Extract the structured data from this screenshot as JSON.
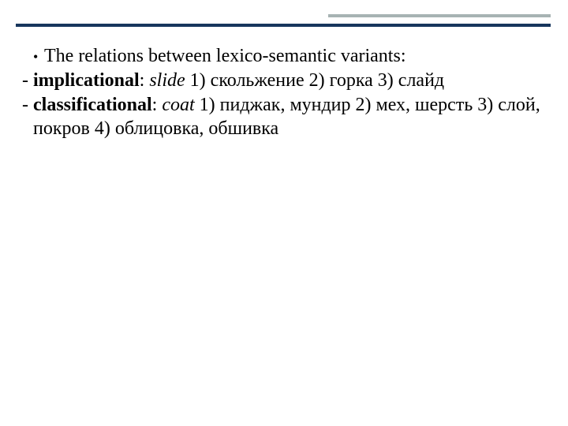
{
  "slide": {
    "accent_color": "#a7b3b3",
    "rule_color": "#17365d",
    "background": "#ffffff",
    "font_family": "Georgia",
    "font_size_pt": 24,
    "bullet": {
      "text": "The relations between lexico-semantic variants:"
    },
    "entries": [
      {
        "dash": "-",
        "label": "implicational",
        "colon": ":",
        "word": "slide",
        "rest": " 1) скольжение 2) горка 3) слайд"
      },
      {
        "dash": "-",
        "label": "classificational",
        "colon": ":",
        "word": "coat",
        "rest": "  1) пиджак, мундир 2) мех, шерсть 3) слой, покров 4) облицовка, обшивка"
      }
    ]
  }
}
